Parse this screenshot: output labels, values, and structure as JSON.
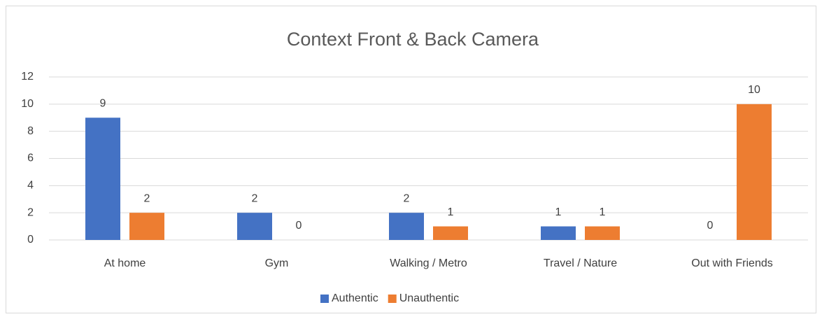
{
  "chart_data": {
    "type": "bar",
    "title": "Context Front & Back Camera",
    "categories": [
      "At home",
      "Gym",
      "Walking / Metro",
      "Travel / Nature",
      "Out with Friends"
    ],
    "series": [
      {
        "name": "Authentic",
        "color": "#4472c4",
        "values": [
          9,
          2,
          2,
          1,
          0
        ]
      },
      {
        "name": "Unauthentic",
        "color": "#ed7d31",
        "values": [
          2,
          0,
          1,
          1,
          10
        ]
      }
    ],
    "ylim": [
      0,
      12
    ],
    "yticks": [
      0,
      2,
      4,
      6,
      8,
      10,
      12
    ],
    "grid": true,
    "legend": "bottom"
  }
}
